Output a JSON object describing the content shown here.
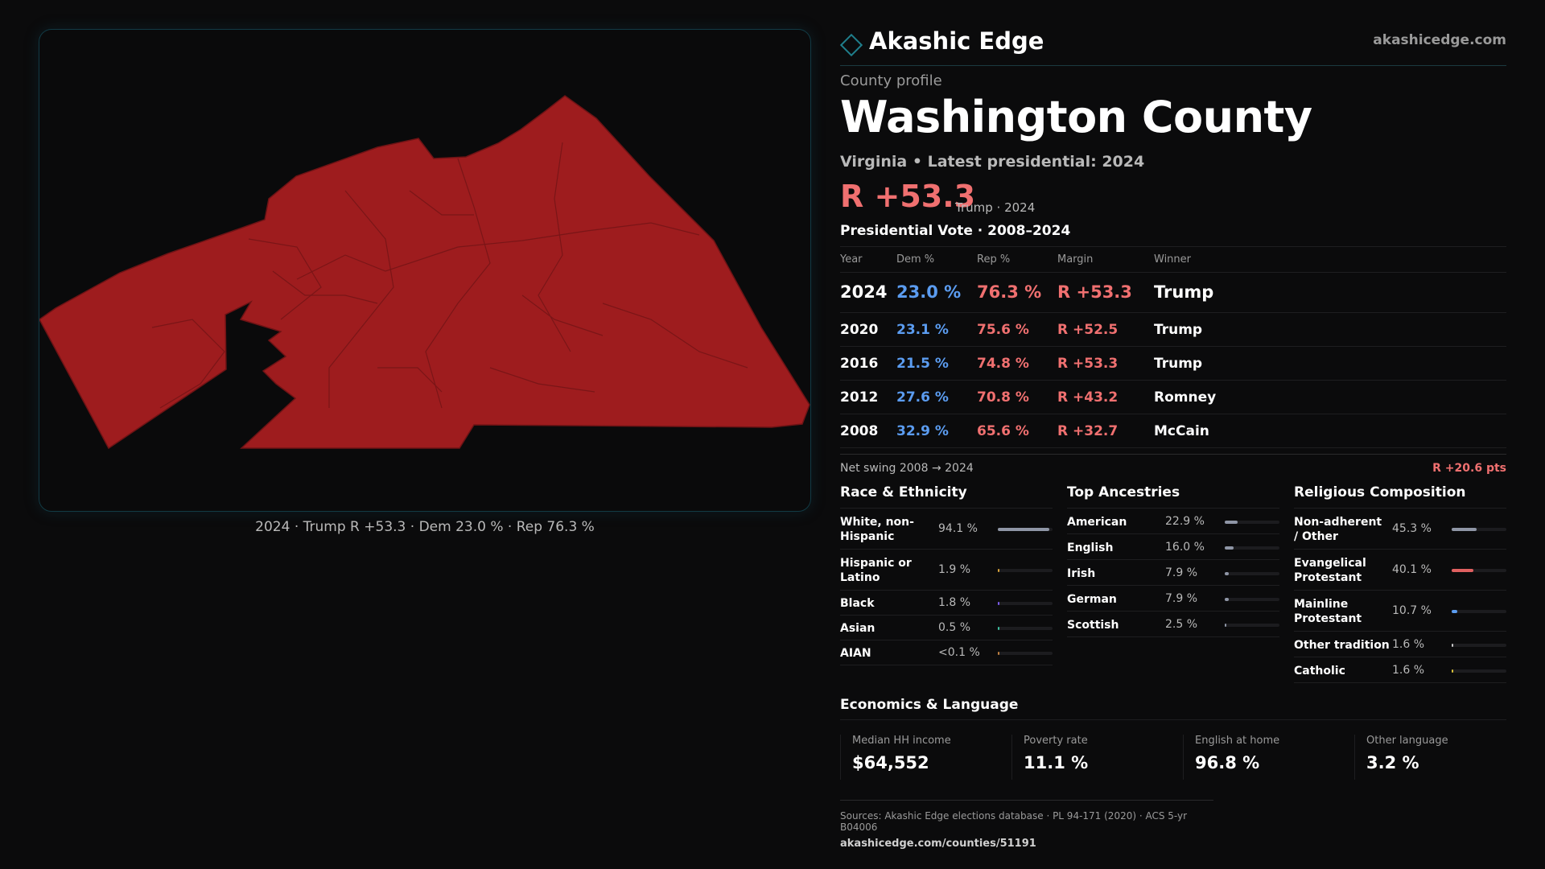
{
  "brand": {
    "name": "Akashic Edge",
    "url": "akashicedge.com",
    "icon": "diamond-icon",
    "accent": "#1f7f8c"
  },
  "profile": {
    "eyebrow": "County profile",
    "title": "Washington County",
    "subtitle": "Virginia • Latest presidential: 2024",
    "headline_margin": "R +53.3",
    "headline_note": "Trump · 2024"
  },
  "map": {
    "caption": "2024 · Trump R +53.3 · Dem 23.0 % · Rep 76.3 %",
    "fill_color": "#9e1c1e",
    "border_color": "#123a44"
  },
  "vote": {
    "title": "Presidential Vote · 2008–2024",
    "headers": {
      "year": "Year",
      "dem": "Dem %",
      "rep": "Rep %",
      "margin": "Margin",
      "winner": "Winner"
    },
    "rows": [
      {
        "year": "2024",
        "dem": "23.0 %",
        "rep": "76.3 %",
        "margin": "R +53.3",
        "winner": "Trump"
      },
      {
        "year": "2020",
        "dem": "23.1 %",
        "rep": "75.6 %",
        "margin": "R +52.5",
        "winner": "Trump"
      },
      {
        "year": "2016",
        "dem": "21.5 %",
        "rep": "74.8 %",
        "margin": "R +53.3",
        "winner": "Trump"
      },
      {
        "year": "2012",
        "dem": "27.6 %",
        "rep": "70.8 %",
        "margin": "R +43.2",
        "winner": "Romney"
      },
      {
        "year": "2008",
        "dem": "32.9 %",
        "rep": "65.6 %",
        "margin": "R +32.7",
        "winner": "McCain"
      }
    ],
    "swing_label": "Net swing 2008 → 2024",
    "swing_value": "R +20.6 pts"
  },
  "race": {
    "title": "Race & Ethnicity",
    "rows": [
      {
        "label": "White, non-Hispanic",
        "pct": "94.1 %",
        "share": 0.941,
        "color": "#8f96a6"
      },
      {
        "label": "Hispanic or Latino",
        "pct": "1.9 %",
        "share": 0.019,
        "color": "#d9a23a"
      },
      {
        "label": "Black",
        "pct": "1.8 %",
        "share": 0.018,
        "color": "#7b5cf0"
      },
      {
        "label": "Asian",
        "pct": "0.5 %",
        "share": 0.005,
        "color": "#3cc0a0"
      },
      {
        "label": "AIAN",
        "pct": "<0.1 %",
        "share": 0.001,
        "color": "#c08040"
      }
    ]
  },
  "ancestry": {
    "title": "Top Ancestries",
    "rows": [
      {
        "label": "American",
        "pct": "22.9 %",
        "share": 0.229,
        "color": "#8f96a6"
      },
      {
        "label": "English",
        "pct": "16.0 %",
        "share": 0.16,
        "color": "#8f96a6"
      },
      {
        "label": "Irish",
        "pct": "7.9 %",
        "share": 0.079,
        "color": "#8f96a6"
      },
      {
        "label": "German",
        "pct": "7.9 %",
        "share": 0.079,
        "color": "#8f96a6"
      },
      {
        "label": "Scottish",
        "pct": "2.5 %",
        "share": 0.025,
        "color": "#8f96a6"
      }
    ]
  },
  "religion": {
    "title": "Religious Composition",
    "rows": [
      {
        "label": "Non-adherent / Other",
        "pct": "45.3 %",
        "share": 0.453,
        "color": "#8f96a6"
      },
      {
        "label": "Evangelical Protestant",
        "pct": "40.1 %",
        "share": 0.401,
        "color": "#e06060"
      },
      {
        "label": "Mainline Protestant",
        "pct": "10.7 %",
        "share": 0.107,
        "color": "#5b9cf0"
      },
      {
        "label": "Other tradition",
        "pct": "1.6 %",
        "share": 0.016,
        "color": "#c8c8c8"
      },
      {
        "label": "Catholic",
        "pct": "1.6 %",
        "share": 0.016,
        "color": "#d9c23a"
      }
    ]
  },
  "economics": {
    "title": "Economics & Language",
    "cells": [
      {
        "label": "Median HH income",
        "value": "$64,552"
      },
      {
        "label": "Poverty rate",
        "value": "11.1 %"
      },
      {
        "label": "English at home",
        "value": "96.8 %"
      },
      {
        "label": "Other language",
        "value": "3.2 %"
      }
    ]
  },
  "sources": {
    "text": "Sources: Akashic Edge elections database · PL 94-171 (2020) · ACS 5-yr B04006",
    "link": "akashicedge.com/counties/51191"
  }
}
